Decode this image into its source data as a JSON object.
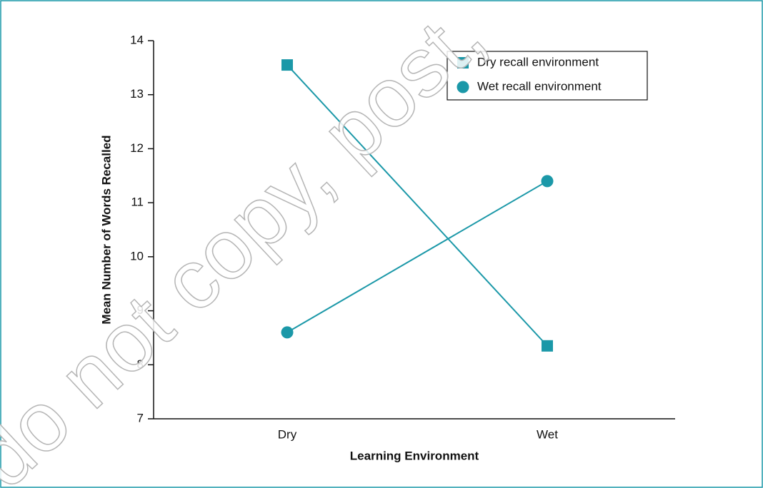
{
  "chart_data": {
    "type": "line",
    "x_label": "Learning Environment",
    "y_label": "Mean Number of Words Recalled",
    "categories": [
      "Dry",
      "Wet"
    ],
    "series": [
      {
        "name": "Dry recall environment",
        "color": "#1b98a8",
        "marker": "square",
        "values": [
          13.55,
          8.35
        ]
      },
      {
        "name": "Wet recall environment",
        "color": "#1b98a8",
        "marker": "circle",
        "values": [
          8.6,
          11.4
        ]
      }
    ],
    "ylim": [
      7,
      14
    ],
    "yticks": [
      7,
      8,
      9,
      10,
      11,
      12,
      13,
      14
    ],
    "legend": "upper right",
    "watermark": "do not copy, post,"
  }
}
